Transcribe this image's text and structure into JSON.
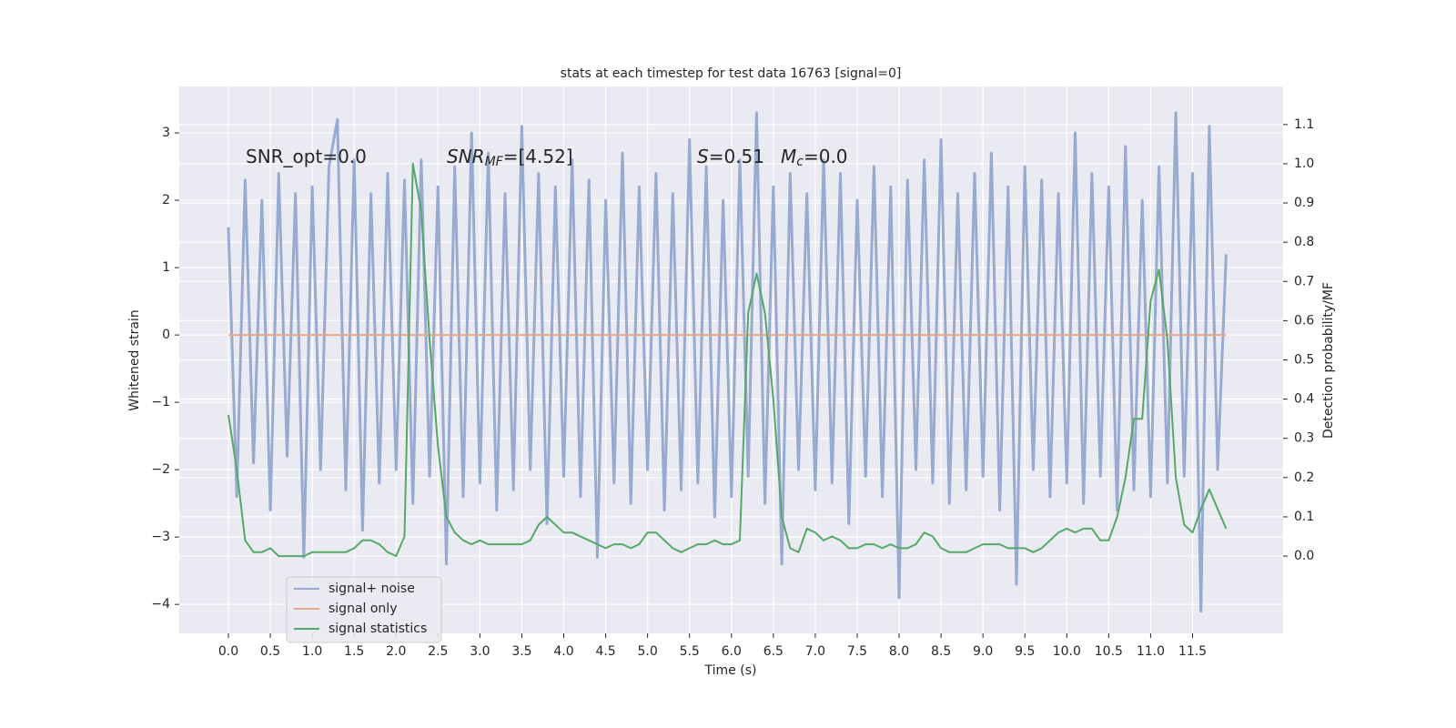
{
  "chart_data": {
    "type": "line",
    "title": "stats at each timestep for test data 16763 [signal=0]",
    "xlabel": "Time (s)",
    "ylabel": "Whitened strain",
    "y2label": "Detection probability/MF",
    "annotations": [
      [
        {
          "text": "SNR_opt=0.0",
          "style": "normal"
        }
      ],
      [
        {
          "text": "SNR",
          "style": "italic"
        },
        {
          "text": "MF",
          "style": "italic-sub"
        },
        {
          "text": "=[4.52]",
          "style": "normal"
        }
      ],
      [
        {
          "text": "S",
          "style": "italic"
        },
        {
          "text": "=0.51",
          "style": "normal"
        }
      ],
      [
        {
          "text": "M",
          "style": "italic"
        },
        {
          "text": "c",
          "style": "italic-sub"
        },
        {
          "text": "=0.0",
          "style": "normal"
        }
      ]
    ],
    "x": [
      0,
      0.1,
      0.2,
      0.3,
      0.4,
      0.5,
      0.6,
      0.7,
      0.8,
      0.9,
      1.0,
      1.1,
      1.2,
      1.3,
      1.4,
      1.5,
      1.6,
      1.7,
      1.8,
      1.9,
      2.0,
      2.1,
      2.2,
      2.3,
      2.4,
      2.5,
      2.6,
      2.7,
      2.8,
      2.9,
      3.0,
      3.1,
      3.2,
      3.3,
      3.4,
      3.5,
      3.6,
      3.7,
      3.8,
      3.9,
      4.0,
      4.1,
      4.2,
      4.3,
      4.4,
      4.5,
      4.6,
      4.7,
      4.8,
      4.9,
      5.0,
      5.1,
      5.2,
      5.3,
      5.4,
      5.5,
      5.6,
      5.7,
      5.8,
      5.9,
      6.0,
      6.1,
      6.2,
      6.3,
      6.4,
      6.5,
      6.6,
      6.7,
      6.8,
      6.9,
      7.0,
      7.1,
      7.2,
      7.3,
      7.4,
      7.5,
      7.6,
      7.7,
      7.8,
      7.9,
      8.0,
      8.1,
      8.2,
      8.3,
      8.4,
      8.5,
      8.6,
      8.7,
      8.8,
      8.9,
      9.0,
      9.1,
      9.2,
      9.3,
      9.4,
      9.5,
      9.6,
      9.7,
      9.8,
      9.9,
      10.0,
      10.1,
      10.2,
      10.3,
      10.4,
      10.5,
      10.6,
      10.7,
      10.8,
      10.9,
      11.0,
      11.1,
      11.2,
      11.3,
      11.4,
      11.5,
      11.6,
      11.7,
      11.8,
      11.9
    ],
    "series": [
      {
        "name": "signal+ noise",
        "color": "#99aad0",
        "values": [
          1.6,
          -2.4,
          2.3,
          -1.9,
          2.0,
          -2.6,
          2.4,
          -1.8,
          2.1,
          -3.3,
          2.2,
          -2.0,
          2.5,
          3.2,
          -2.3,
          2.6,
          -2.9,
          2.1,
          -2.2,
          2.4,
          -2.0,
          2.3,
          -2.5,
          2.6,
          -2.1,
          2.2,
          -3.4,
          2.5,
          -2.4,
          3.0,
          -2.2,
          2.7,
          -2.6,
          2.1,
          -2.3,
          3.1,
          -2.0,
          2.4,
          -2.8,
          2.2,
          -2.1,
          2.6,
          -2.4,
          2.3,
          -3.3,
          2.0,
          -2.2,
          2.7,
          -2.5,
          2.2,
          -2.0,
          2.4,
          -2.6,
          2.1,
          -2.3,
          2.9,
          -2.2,
          2.5,
          -2.7,
          2.0,
          -2.4,
          2.6,
          -2.1,
          3.3,
          -2.5,
          2.2,
          -3.4,
          2.4,
          -2.0,
          2.1,
          -2.3,
          2.6,
          -2.2,
          2.4,
          -2.8,
          2.0,
          -2.1,
          2.5,
          -2.4,
          2.2,
          -3.9,
          2.3,
          -2.0,
          2.6,
          -2.2,
          2.9,
          -2.5,
          2.1,
          -2.3,
          2.4,
          -2.1,
          2.7,
          -2.6,
          2.2,
          -3.7,
          2.5,
          -2.0,
          2.3,
          -2.4,
          2.1,
          -2.2,
          3.0,
          -2.5,
          2.4,
          -2.1,
          2.2,
          -2.6,
          2.8,
          -2.3,
          2.0,
          -2.4,
          2.5,
          -2.2,
          3.3,
          -2.1,
          2.4,
          -4.1,
          3.1,
          -2.0,
          1.2
        ]
      },
      {
        "name": "signal only",
        "color": "#e8a98a",
        "values": [
          0,
          0,
          0,
          0,
          0,
          0,
          0,
          0,
          0,
          0,
          0,
          0,
          0,
          0,
          0,
          0,
          0,
          0,
          0,
          0,
          0,
          0,
          0,
          0,
          0,
          0,
          0,
          0,
          0,
          0,
          0,
          0,
          0,
          0,
          0,
          0,
          0,
          0,
          0,
          0,
          0,
          0,
          0,
          0,
          0,
          0,
          0,
          0,
          0,
          0,
          0,
          0,
          0,
          0,
          0,
          0,
          0,
          0,
          0,
          0,
          0,
          0,
          0,
          0,
          0,
          0,
          0,
          0,
          0,
          0,
          0,
          0,
          0,
          0,
          0,
          0,
          0,
          0,
          0,
          0,
          0,
          0,
          0,
          0,
          0,
          0,
          0,
          0,
          0,
          0,
          0,
          0,
          0,
          0,
          0,
          0,
          0,
          0,
          0,
          0,
          0,
          0,
          0,
          0,
          0,
          0,
          0,
          0,
          0,
          0,
          0,
          0,
          0,
          0,
          0,
          0,
          0,
          0,
          0,
          0
        ]
      },
      {
        "name": "signal statistics",
        "color": "#55a868",
        "axis": "y2",
        "values": [
          0.36,
          0.22,
          0.04,
          0.01,
          0.01,
          0.02,
          0.0,
          0.0,
          0.0,
          0.0,
          0.01,
          0.01,
          0.01,
          0.01,
          0.01,
          0.02,
          0.04,
          0.04,
          0.03,
          0.01,
          0.0,
          0.05,
          1.0,
          0.88,
          0.55,
          0.28,
          0.1,
          0.06,
          0.04,
          0.03,
          0.04,
          0.03,
          0.03,
          0.03,
          0.03,
          0.03,
          0.04,
          0.08,
          0.1,
          0.08,
          0.06,
          0.06,
          0.05,
          0.04,
          0.03,
          0.02,
          0.03,
          0.03,
          0.02,
          0.03,
          0.06,
          0.06,
          0.04,
          0.02,
          0.01,
          0.02,
          0.03,
          0.03,
          0.04,
          0.03,
          0.03,
          0.04,
          0.62,
          0.72,
          0.62,
          0.4,
          0.1,
          0.02,
          0.01,
          0.07,
          0.06,
          0.04,
          0.05,
          0.04,
          0.02,
          0.02,
          0.03,
          0.03,
          0.02,
          0.03,
          0.02,
          0.02,
          0.03,
          0.06,
          0.05,
          0.02,
          0.01,
          0.01,
          0.01,
          0.02,
          0.03,
          0.03,
          0.03,
          0.02,
          0.02,
          0.02,
          0.01,
          0.02,
          0.04,
          0.06,
          0.07,
          0.06,
          0.07,
          0.07,
          0.04,
          0.04,
          0.1,
          0.2,
          0.35,
          0.35,
          0.65,
          0.73,
          0.55,
          0.2,
          0.08,
          0.06,
          0.12,
          0.17,
          0.12,
          0.07
        ]
      }
    ],
    "xlim": [
      -0.586,
      12.58
    ],
    "xticks": [
      {
        "value": 0,
        "label": "0.0"
      },
      {
        "value": 0.5,
        "label": "0.5"
      },
      {
        "value": 1,
        "label": "1.0"
      },
      {
        "value": 1.5,
        "label": "1.5"
      },
      {
        "value": 2,
        "label": "2.0"
      },
      {
        "value": 2.5,
        "label": "2.5"
      },
      {
        "value": 3,
        "label": "3.0"
      },
      {
        "value": 3.5,
        "label": "3.5"
      },
      {
        "value": 4,
        "label": "4.0"
      },
      {
        "value": 4.5,
        "label": "4.5"
      },
      {
        "value": 5,
        "label": "5.0"
      },
      {
        "value": 5.5,
        "label": "5.5"
      },
      {
        "value": 6,
        "label": "6.0"
      },
      {
        "value": 6.5,
        "label": "6.5"
      },
      {
        "value": 7,
        "label": "7.0"
      },
      {
        "value": 7.5,
        "label": "7.5"
      },
      {
        "value": 8,
        "label": "8.0"
      },
      {
        "value": 8.5,
        "label": "8.5"
      },
      {
        "value": 9,
        "label": "9.0"
      },
      {
        "value": 9.5,
        "label": "9.5"
      },
      {
        "value": 10,
        "label": "10.0"
      },
      {
        "value": 10.5,
        "label": "10.5"
      },
      {
        "value": 11,
        "label": "11.0"
      },
      {
        "value": 11.5,
        "label": "11.5"
      }
    ],
    "ylim": [
      -4.43,
      3.69
    ],
    "yticks": [
      {
        "value": -4,
        "label": "−4"
      },
      {
        "value": -3,
        "label": "−3"
      },
      {
        "value": -2,
        "label": "−2"
      },
      {
        "value": -1,
        "label": "−1"
      },
      0,
      1,
      2,
      3
    ],
    "y2lim": [
      -0.197,
      1.197
    ],
    "y2ticks": [
      {
        "value": 0,
        "label": "0.0"
      },
      {
        "value": 0.1,
        "label": "0.1"
      },
      {
        "value": 0.2,
        "label": "0.2"
      },
      {
        "value": 0.3,
        "label": "0.3"
      },
      {
        "value": 0.4,
        "label": "0.4"
      },
      {
        "value": 0.5,
        "label": "0.5"
      },
      {
        "value": 0.6,
        "label": "0.6"
      },
      {
        "value": 0.7,
        "label": "0.7"
      },
      {
        "value": 0.8,
        "label": "0.8"
      },
      {
        "value": 0.9,
        "label": "0.9"
      },
      {
        "value": 1.0,
        "label": "1.0"
      },
      {
        "value": 1.1,
        "label": "1.1"
      }
    ],
    "grid": true,
    "legend": "lower left"
  }
}
